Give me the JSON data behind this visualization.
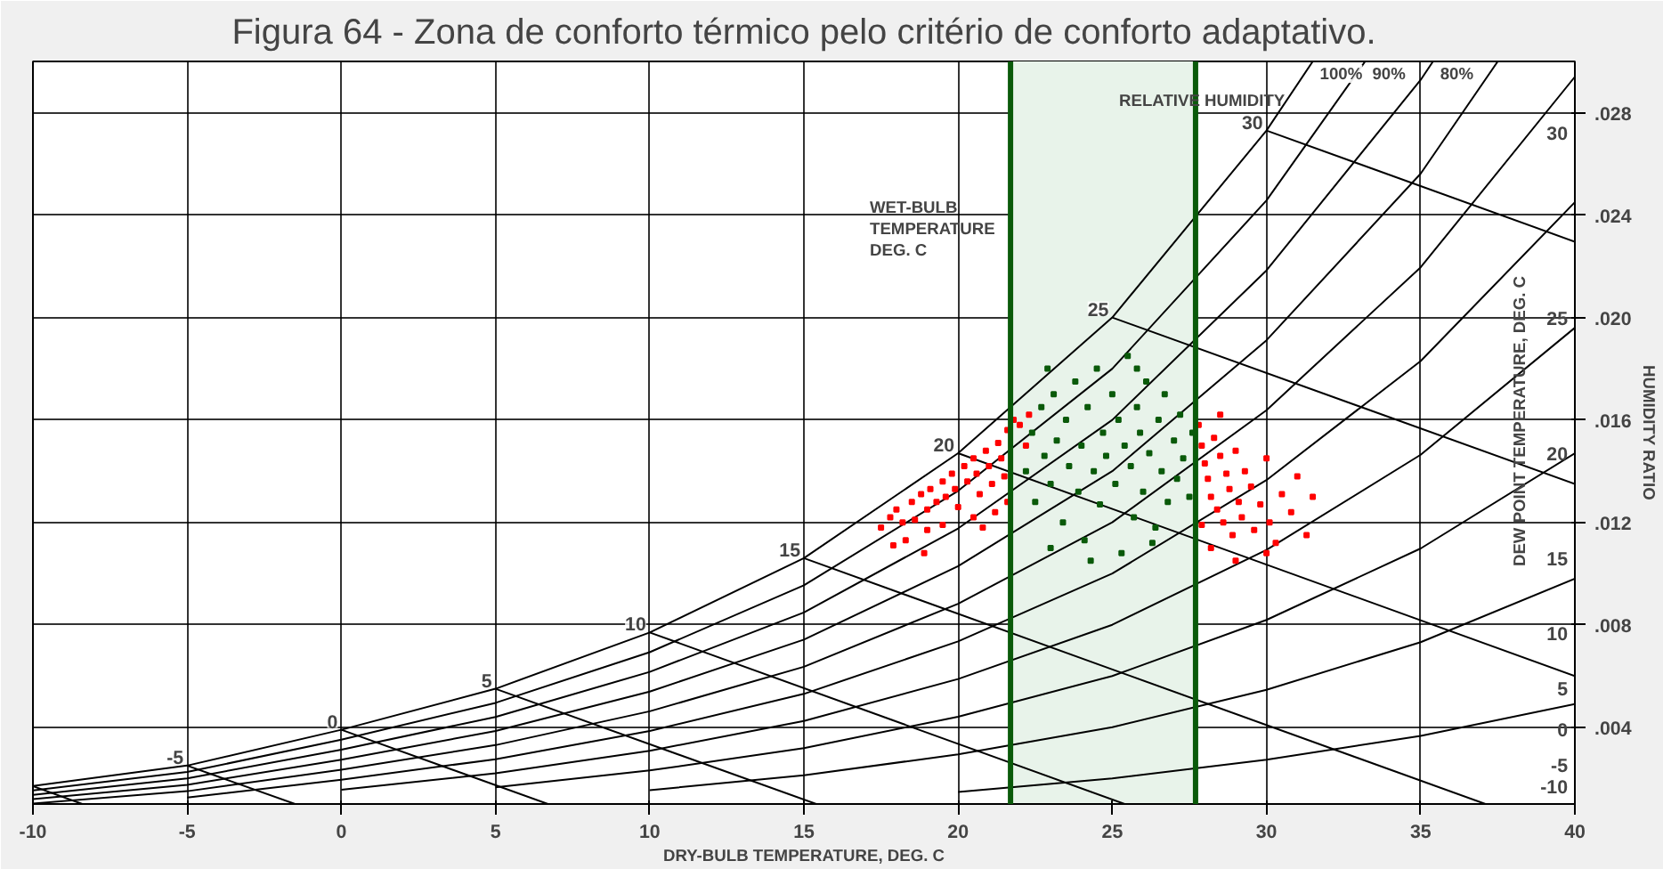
{
  "chart_data": {
    "type": "scatter",
    "title": "Figura 64 - Zona de conforto térmico pelo critério de conforto adaptativo.",
    "xlabel": "DRY-BULB TEMPERATURE, DEG. C",
    "ylabel": "HUMIDITY RATIO",
    "y2label": "DEW POINT TEMPERATURE, DEG. C",
    "xlim": [
      -10,
      40
    ],
    "xticks": [
      -10,
      -5,
      0,
      5,
      10,
      15,
      20,
      25,
      30,
      35,
      40
    ],
    "ylim": [
      0.001,
      0.03
    ],
    "yticks": [
      {
        "value": 0.004,
        "label": ".004"
      },
      {
        "value": 0.008,
        "label": ".008"
      },
      {
        "value": 0.012,
        "label": ".012"
      },
      {
        "value": 0.016,
        "label": ".016"
      },
      {
        "value": 0.02,
        "label": ".020"
      },
      {
        "value": 0.024,
        "label": ".024"
      },
      {
        "value": 0.028,
        "label": ".028"
      }
    ],
    "grid": true,
    "bands": [
      {
        "axis": "x",
        "from": 21.7,
        "to": 27.7,
        "color": "#e8f3ea"
      }
    ],
    "ref_lines": [
      {
        "axis": "x",
        "value": 21.7,
        "color": "#0a5a0a"
      },
      {
        "axis": "x",
        "value": 27.7,
        "color": "#0a5a0a"
      }
    ],
    "annotations": [
      "WET-BULB\nTEMPERATURE\nDEG. C",
      "RELATIVE HUMIDITY",
      {
        "text": "-5",
        "x": -5,
        "y": 0.0025
      },
      {
        "text": "0",
        "x": 0,
        "y": 0.0039
      },
      {
        "text": "5",
        "x": 5,
        "y": 0.0055
      },
      {
        "text": "10",
        "x": 10,
        "y": 0.0077
      },
      {
        "text": "15",
        "x": 15,
        "y": 0.0106
      },
      {
        "text": "20",
        "x": 20,
        "y": 0.0147
      },
      {
        "text": "25",
        "x": 25,
        "y": 0.02
      },
      {
        "text": "30",
        "x": 30,
        "y": 0.0273
      },
      "-10",
      "-5",
      "0",
      "5",
      "10",
      "15",
      "20",
      "25",
      "30"
    ],
    "series": [
      {
        "type": "line",
        "name": "100%",
        "color": "#000000",
        "x": [
          -10,
          -5,
          0,
          5,
          10,
          15,
          20,
          25,
          30,
          31.5
        ],
        "values": [
          0.0017,
          0.0025,
          0.0039,
          0.0055,
          0.0077,
          0.0106,
          0.0147,
          0.02,
          0.0273,
          0.03
        ]
      },
      {
        "type": "line",
        "name": "90%",
        "color": "#000000",
        "x": [
          -10,
          -5,
          0,
          5,
          10,
          15,
          20,
          25,
          30,
          33.2
        ],
        "values": [
          0.00153,
          0.00225,
          0.00351,
          0.00495,
          0.00693,
          0.00954,
          0.01323,
          0.018,
          0.02457,
          0.03
        ]
      },
      {
        "type": "line",
        "name": "80%",
        "color": "#000000",
        "x": [
          -10,
          -5,
          0,
          5,
          10,
          15,
          20,
          25,
          30,
          35,
          35.4
        ],
        "values": [
          0.00136,
          0.002,
          0.00312,
          0.0044,
          0.00616,
          0.00848,
          0.01176,
          0.016,
          0.02184,
          0.02928,
          0.03
        ]
      },
      {
        "type": "line",
        "color": "#000000",
        "x": [
          -10,
          -5,
          0,
          5,
          10,
          15,
          20,
          25,
          30,
          35,
          37.5
        ],
        "values": [
          0.00119,
          0.00175,
          0.00273,
          0.00385,
          0.00539,
          0.00742,
          0.01029,
          0.014,
          0.01911,
          0.02562,
          0.03
        ]
      },
      {
        "type": "line",
        "color": "#000000",
        "x": [
          -10,
          -5,
          0,
          5,
          10,
          15,
          20,
          25,
          30,
          35,
          40
        ],
        "values": [
          0.00102,
          0.0015,
          0.00234,
          0.0033,
          0.00462,
          0.00636,
          0.00882,
          0.012,
          0.01638,
          0.02196,
          0.0294
        ]
      },
      {
        "type": "line",
        "color": "#000000",
        "x": [
          -5,
          0,
          5,
          10,
          15,
          20,
          25,
          30,
          35,
          40
        ],
        "values": [
          0.00125,
          0.00195,
          0.00275,
          0.00385,
          0.0053,
          0.00735,
          0.01,
          0.01365,
          0.0183,
          0.0245
        ]
      },
      {
        "type": "line",
        "color": "#000000",
        "x": [
          0,
          5,
          10,
          15,
          20,
          25,
          30,
          35,
          40
        ],
        "values": [
          0.00156,
          0.0022,
          0.00308,
          0.00424,
          0.00588,
          0.008,
          0.01092,
          0.01464,
          0.0196
        ]
      },
      {
        "type": "line",
        "color": "#000000",
        "x": [
          5,
          10,
          15,
          20,
          25,
          30,
          35,
          40
        ],
        "values": [
          0.00165,
          0.00231,
          0.00318,
          0.00441,
          0.006,
          0.00819,
          0.01098,
          0.0147
        ]
      },
      {
        "type": "line",
        "color": "#000000",
        "x": [
          10,
          15,
          20,
          25,
          30,
          35,
          40
        ],
        "values": [
          0.00154,
          0.00212,
          0.00294,
          0.004,
          0.00546,
          0.00732,
          0.0098
        ]
      },
      {
        "type": "line",
        "color": "#000000",
        "x": [
          20,
          25,
          30,
          35,
          40
        ],
        "values": [
          0.00147,
          0.002,
          0.00273,
          0.00366,
          0.0049
        ]
      },
      {
        "type": "line",
        "color": "#000000",
        "x": [
          -10,
          -8.4
        ],
        "values": [
          0.0017,
          0.001
        ]
      },
      {
        "type": "line",
        "color": "#000000",
        "x": [
          -5,
          -1.5
        ],
        "values": [
          0.0025,
          0.001
        ]
      },
      {
        "type": "line",
        "color": "#000000",
        "x": [
          0,
          6.7
        ],
        "values": [
          0.0039,
          0.001
        ]
      },
      {
        "type": "line",
        "color": "#000000",
        "x": [
          5,
          15.4
        ],
        "values": [
          0.0055,
          0.001
        ]
      },
      {
        "type": "line",
        "color": "#000000",
        "x": [
          10,
          25.4
        ],
        "values": [
          0.0077,
          0.001
        ]
      },
      {
        "type": "line",
        "color": "#000000",
        "x": [
          15,
          37.1
        ],
        "values": [
          0.0106,
          0.001
        ]
      },
      {
        "type": "line",
        "color": "#000000",
        "x": [
          20,
          40
        ],
        "values": [
          0.0147,
          0.006
        ]
      },
      {
        "type": "line",
        "color": "#000000",
        "x": [
          25,
          40
        ],
        "values": [
          0.02,
          0.0135
        ]
      },
      {
        "type": "line",
        "color": "#000000",
        "x": [
          30,
          40
        ],
        "values": [
          0.0273,
          0.02296
        ]
      },
      {
        "color": "#ff0000",
        "marker": "square",
        "x": [
          17.5,
          17.8,
          18.0,
          18.2,
          18.5,
          18.6,
          18.8,
          19.0,
          19.1,
          19.3,
          19.5,
          19.6,
          19.8,
          19.9,
          20.0,
          20.2,
          20.3,
          20.5,
          20.6,
          20.7,
          20.9,
          21.0,
          21.1,
          21.3,
          21.4,
          21.5,
          21.6,
          21.6,
          19.0,
          18.3,
          17.9,
          20.5,
          21.2,
          21.8,
          22.0,
          22.3,
          22.2,
          19.5,
          20.8,
          18.9,
          27.8,
          27.9,
          28.0,
          28.1,
          28.2,
          28.3,
          28.4,
          28.5,
          28.6,
          28.7,
          28.8,
          28.9,
          29.0,
          29.1,
          29.2,
          29.3,
          29.5,
          29.6,
          29.8,
          30.0,
          30.1,
          30.3,
          30.5,
          30.8,
          31.0,
          31.3,
          28.2,
          29.0,
          30.0,
          27.9,
          31.5,
          28.5
        ],
        "values": [
          0.0118,
          0.0122,
          0.0125,
          0.012,
          0.0128,
          0.0121,
          0.0131,
          0.0125,
          0.0133,
          0.0128,
          0.0136,
          0.013,
          0.0139,
          0.0133,
          0.0126,
          0.0142,
          0.0136,
          0.0145,
          0.0139,
          0.0131,
          0.0148,
          0.0142,
          0.0135,
          0.0151,
          0.0145,
          0.0138,
          0.0156,
          0.0128,
          0.0117,
          0.0113,
          0.0111,
          0.0122,
          0.0124,
          0.016,
          0.0158,
          0.0162,
          0.015,
          0.0119,
          0.0118,
          0.0108,
          0.0158,
          0.015,
          0.0143,
          0.0137,
          0.013,
          0.0153,
          0.0125,
          0.0146,
          0.012,
          0.0139,
          0.0133,
          0.0115,
          0.0148,
          0.0128,
          0.0122,
          0.014,
          0.0134,
          0.0117,
          0.0127,
          0.0145,
          0.012,
          0.0112,
          0.0131,
          0.0124,
          0.0138,
          0.0115,
          0.011,
          0.0105,
          0.0108,
          0.0119,
          0.013,
          0.0162
        ]
      },
      {
        "color": "#0a5a0a",
        "marker": "square",
        "x": [
          22.2,
          22.4,
          22.5,
          22.7,
          22.8,
          23.0,
          23.1,
          23.2,
          23.4,
          23.5,
          23.6,
          23.8,
          23.9,
          24.0,
          24.1,
          24.2,
          24.4,
          24.5,
          24.6,
          24.7,
          24.8,
          25.0,
          25.1,
          25.2,
          25.3,
          25.4,
          25.5,
          25.6,
          25.7,
          25.8,
          25.9,
          26.0,
          26.1,
          26.2,
          26.4,
          26.5,
          26.6,
          26.7,
          26.8,
          27.0,
          27.1,
          27.2,
          27.3,
          27.5,
          27.6,
          23.0,
          24.3,
          26.3,
          22.9,
          25.8
        ],
        "values": [
          0.014,
          0.0155,
          0.0128,
          0.0165,
          0.0146,
          0.0135,
          0.017,
          0.0152,
          0.012,
          0.016,
          0.0142,
          0.0175,
          0.0132,
          0.015,
          0.0113,
          0.0165,
          0.014,
          0.018,
          0.0127,
          0.0155,
          0.0146,
          0.017,
          0.0135,
          0.016,
          0.0108,
          0.015,
          0.0185,
          0.0142,
          0.0122,
          0.0165,
          0.0155,
          0.0132,
          0.0175,
          0.0147,
          0.0118,
          0.016,
          0.014,
          0.017,
          0.0128,
          0.0152,
          0.0137,
          0.0162,
          0.0145,
          0.013,
          0.0155,
          0.011,
          0.0105,
          0.0112,
          0.018,
          0.018
        ]
      }
    ]
  }
}
